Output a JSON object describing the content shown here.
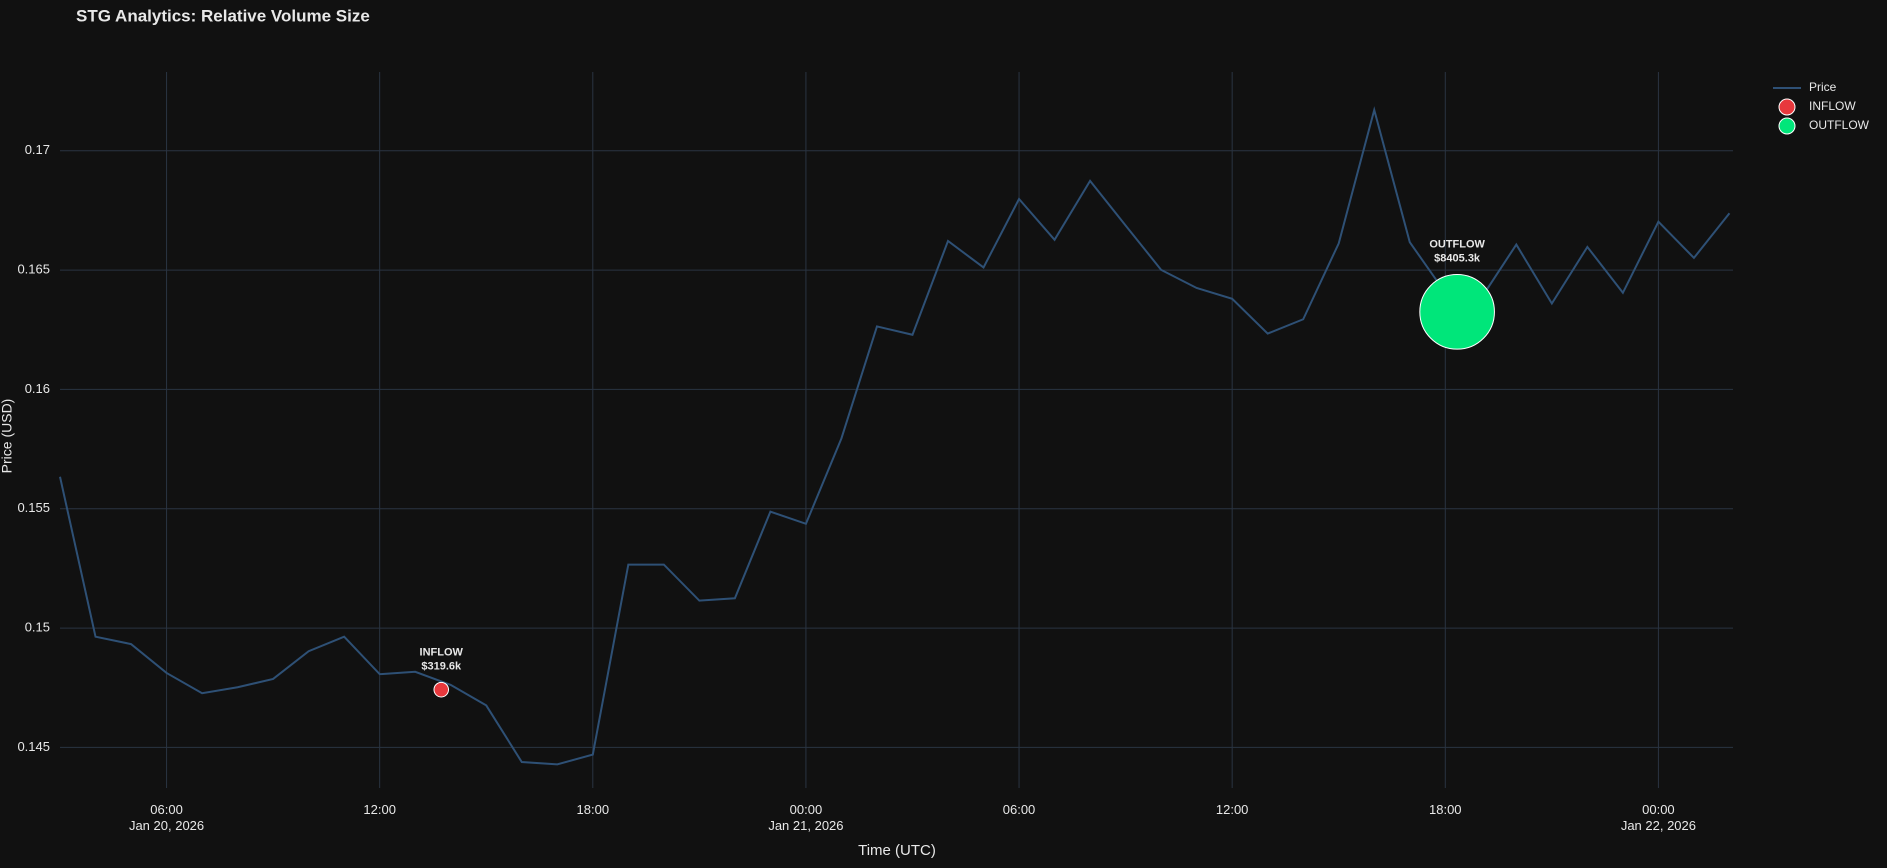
{
  "chart_data": {
    "type": "line",
    "title": "STG Analytics: Relative Volume Size",
    "x_label": "Time (UTC)",
    "y_label": "Price (USD)",
    "x": [
      "2026-01-20 03:00",
      "2026-01-20 04:00",
      "2026-01-20 05:00",
      "2026-01-20 06:00",
      "2026-01-20 07:00",
      "2026-01-20 08:00",
      "2026-01-20 09:00",
      "2026-01-20 10:00",
      "2026-01-20 11:00",
      "2026-01-20 12:00",
      "2026-01-20 13:00",
      "2026-01-20 14:00",
      "2026-01-20 15:00",
      "2026-01-20 16:00",
      "2026-01-20 17:00",
      "2026-01-20 18:00",
      "2026-01-20 19:00",
      "2026-01-20 20:00",
      "2026-01-20 21:00",
      "2026-01-20 22:00",
      "2026-01-20 23:00",
      "2026-01-21 00:00",
      "2026-01-21 01:00",
      "2026-01-21 02:00",
      "2026-01-21 03:00",
      "2026-01-21 04:00",
      "2026-01-21 05:00",
      "2026-01-21 06:00",
      "2026-01-21 07:00",
      "2026-01-21 08:00",
      "2026-01-21 09:00",
      "2026-01-21 10:00",
      "2026-01-21 11:00",
      "2026-01-21 12:00",
      "2026-01-21 13:00",
      "2026-01-21 14:00",
      "2026-01-21 15:00",
      "2026-01-21 16:00",
      "2026-01-21 17:00",
      "2026-01-21 18:00",
      "2026-01-21 19:00",
      "2026-01-21 20:00",
      "2026-01-21 21:00",
      "2026-01-21 22:00",
      "2026-01-21 23:00",
      "2026-01-22 00:00",
      "2026-01-22 01:00",
      "2026-01-22 02:00"
    ],
    "series": [
      {
        "name": "Price",
        "color": "#2e5075",
        "values": [
          0.15634,
          0.14964,
          0.14933,
          0.14812,
          0.14727,
          0.14752,
          0.14787,
          0.14903,
          0.14964,
          0.14807,
          0.14817,
          0.14762,
          0.14676,
          0.14439,
          0.14429,
          0.1447,
          0.15266,
          0.15266,
          0.15115,
          0.15125,
          0.15488,
          0.15437,
          0.15795,
          0.16264,
          0.16229,
          0.16622,
          0.16511,
          0.16798,
          0.16627,
          0.16874,
          0.16687,
          0.16501,
          0.16425,
          0.1638,
          0.16234,
          0.16294,
          0.16612,
          0.17171,
          0.16617,
          0.16405,
          0.1638,
          0.16607,
          0.1636,
          0.16597,
          0.16405,
          0.16703,
          0.16551,
          0.16738
        ]
      }
    ],
    "bubbles": [
      {
        "name": "INFLOW",
        "color": "#e8383d",
        "x": [
          "2026-01-20 13:44"
        ],
        "values": [
          0.14742
        ],
        "sizes": [
          319600
        ],
        "value_labels": [
          "$319.6k"
        ]
      },
      {
        "name": "OUTFLOW",
        "color": "#00e67a",
        "x": [
          "2026-01-21 18:20"
        ],
        "values": [
          0.16325
        ],
        "sizes": [
          8405300
        ],
        "value_labels": [
          "$8405.3k"
        ]
      }
    ],
    "xlim": [
      "2026-01-20 03:00",
      "2026-01-22 02:06"
    ],
    "xticks": [
      {
        "value": "2026-01-20 06:00",
        "label": "06:00\nJan 20, 2026"
      },
      {
        "value": "2026-01-20 12:00",
        "label": "12:00"
      },
      {
        "value": "2026-01-20 18:00",
        "label": "18:00"
      },
      {
        "value": "2026-01-21 00:00",
        "label": "00:00\nJan 21, 2026"
      },
      {
        "value": "2026-01-21 06:00",
        "label": "06:00"
      },
      {
        "value": "2026-01-21 12:00",
        "label": "12:00"
      },
      {
        "value": "2026-01-21 18:00",
        "label": "18:00"
      },
      {
        "value": "2026-01-22 00:00",
        "label": "00:00\nJan 22, 2026"
      }
    ],
    "ylim": [
      0.1433,
      0.1733
    ],
    "yticks": [
      0.145,
      0.15,
      0.155,
      0.16,
      0.165,
      0.17
    ],
    "grid": true,
    "legend": "top-right"
  }
}
